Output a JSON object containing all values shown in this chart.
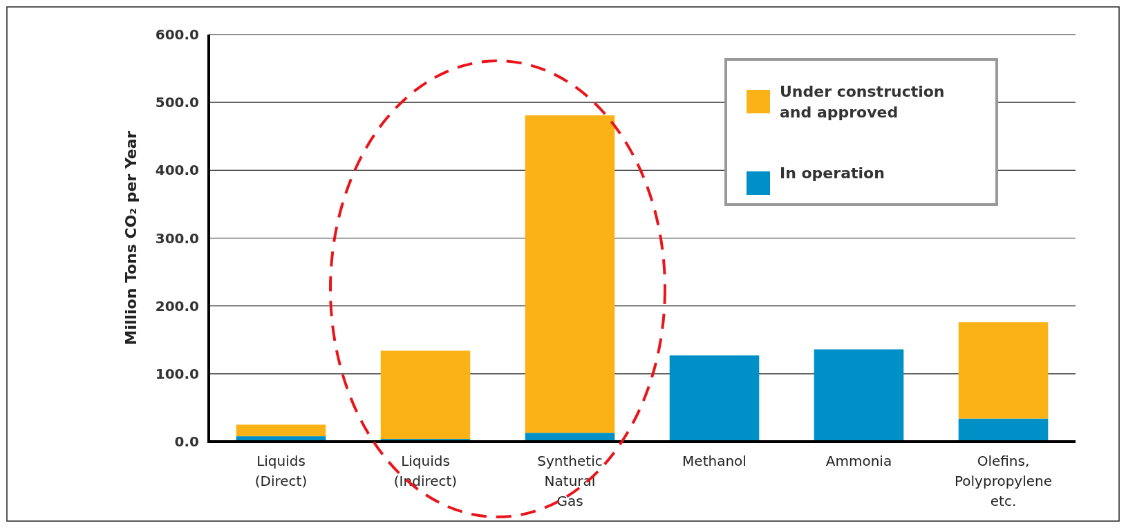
{
  "chart_data": {
    "type": "bar",
    "stacked": true,
    "ylabel": "Million Tons CO₂ per Year",
    "categories": [
      "Liquids\n(Direct)",
      "Liquids\n(Indirect)",
      "Synthetic\nNatural\nGas",
      "Methanol",
      "Ammonia",
      "Olefins,\nPolypropylene\netc."
    ],
    "series": [
      {
        "name": "In operation",
        "color": "#0090c8",
        "values": [
          8,
          4,
          13,
          127,
          136,
          34
        ]
      },
      {
        "name": "Under construction\nand approved",
        "color": "#fbb217",
        "values": [
          17,
          130,
          468,
          0,
          0,
          142
        ]
      }
    ],
    "ylim": [
      0,
      600
    ],
    "yticks": [
      {
        "value": 0,
        "label": "0.0"
      },
      {
        "value": 100,
        "label": "100.0"
      },
      {
        "value": 200,
        "label": "200.0"
      },
      {
        "value": 300,
        "label": "300.0"
      },
      {
        "value": 400,
        "label": "400.0"
      },
      {
        "value": 500,
        "label": "500.0"
      },
      {
        "value": 600,
        "label": "600.0"
      }
    ],
    "grid": "y",
    "legend": "top right"
  }
}
